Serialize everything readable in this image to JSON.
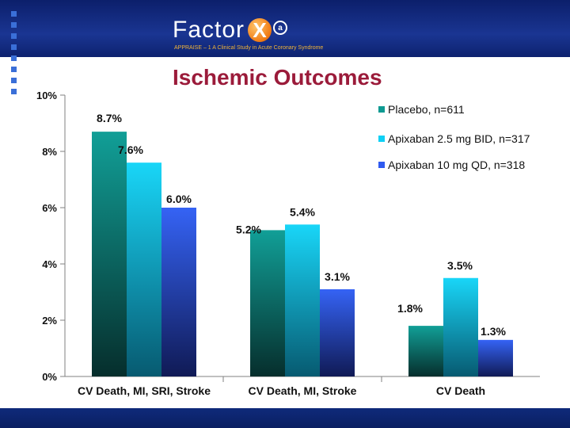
{
  "header": {
    "logo_text": "Factor",
    "logo_x": "X",
    "logo_a": "a",
    "subtitle": "APPRAISE – 1  A Clinical Study in Acute Coronary Syndrome"
  },
  "colors": {
    "header_bg": "#1a3592",
    "title": "#9b1b3a",
    "placebo": "#0e9a92",
    "apixaban_25": "#0fd0f5",
    "apixaban_10": "#2f5af0"
  },
  "chart_data": {
    "type": "bar",
    "title": "Ischemic Outcomes",
    "xlabel": "",
    "ylabel": "",
    "ylim": [
      0,
      10
    ],
    "yticks": [
      "0%",
      "2%",
      "4%",
      "6%",
      "8%",
      "10%"
    ],
    "categories": [
      "CV Death, MI, SRI, Stroke",
      "CV Death, MI, Stroke",
      "CV Death"
    ],
    "series": [
      {
        "name": "Placebo, n=611",
        "values": [
          8.7,
          5.2,
          1.8
        ],
        "labels": [
          "8.7%",
          "5.2%",
          "1.8%"
        ],
        "color": "#0e9a92"
      },
      {
        "name": "Apixaban 2.5 mg BID, n=317",
        "values": [
          7.6,
          5.4,
          3.5
        ],
        "labels": [
          "7.6%",
          "5.4%",
          "3.5%"
        ],
        "color": "#0fd0f5"
      },
      {
        "name": "Apixaban 10 mg QD, n=318",
        "values": [
          6.0,
          3.1,
          1.3
        ],
        "labels": [
          "6.0%",
          "3.1%",
          "1.3%"
        ],
        "color": "#2f5af0"
      }
    ],
    "legend_position": "top-right"
  }
}
